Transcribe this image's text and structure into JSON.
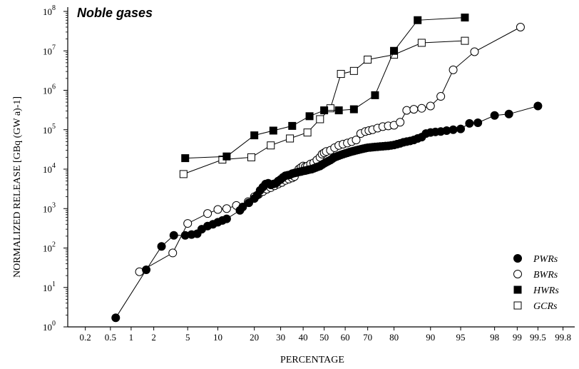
{
  "chart_data": {
    "type": "line",
    "title": "Noble gases",
    "xlabel": "PERCENTAGE",
    "ylabel": "NORMALIZED RELEASE [GBq (GW a)-1]",
    "x_scale": "normal-probability",
    "y_scale": "log",
    "xlim": [
      0.1,
      99.85
    ],
    "ylim": [
      1,
      100000000
    ],
    "x_ticks": [
      "0.2",
      "0.5",
      "1",
      "2",
      "5",
      "10",
      "20",
      "30",
      "40",
      "50",
      "60",
      "70",
      "80",
      "90",
      "95",
      "98",
      "99",
      "99.5",
      "99.8"
    ],
    "x_tick_values": [
      0.2,
      0.5,
      1,
      2,
      5,
      10,
      20,
      30,
      40,
      50,
      60,
      70,
      80,
      90,
      95,
      98,
      99,
      99.5,
      99.8
    ],
    "y_ticks": [
      {
        "base": "10",
        "exp": "0",
        "value": 1
      },
      {
        "base": "10",
        "exp": "1",
        "value": 10
      },
      {
        "base": "10",
        "exp": "2",
        "value": 100
      },
      {
        "base": "10",
        "exp": "3",
        "value": 1000
      },
      {
        "base": "10",
        "exp": "4",
        "value": 10000
      },
      {
        "base": "10",
        "exp": "5",
        "value": 100000
      },
      {
        "base": "10",
        "exp": "6",
        "value": 1000000
      },
      {
        "base": "10",
        "exp": "7",
        "value": 10000000
      },
      {
        "base": "10",
        "exp": "8",
        "value": 100000000
      }
    ],
    "legend_position": "bottom-right",
    "series": [
      {
        "name": "PWRs",
        "marker": "filled-circle",
        "points": [
          [
            0.6,
            1.7
          ],
          [
            1.6,
            28
          ],
          [
            2.5,
            110
          ],
          [
            3.5,
            210
          ],
          [
            4.7,
            210
          ],
          [
            5.5,
            220
          ],
          [
            6.3,
            230
          ],
          [
            7.0,
            300
          ],
          [
            8.0,
            360
          ],
          [
            9.0,
            400
          ],
          [
            10.0,
            450
          ],
          [
            11.0,
            500
          ],
          [
            12.0,
            550
          ],
          [
            15.5,
            900
          ],
          [
            16.3,
            1100
          ],
          [
            18.2,
            1400
          ],
          [
            20.0,
            1800
          ],
          [
            21.0,
            2200
          ],
          [
            22.0,
            2900
          ],
          [
            23.0,
            3500
          ],
          [
            24.0,
            4200
          ],
          [
            25.0,
            4400
          ],
          [
            26.0,
            4000
          ],
          [
            27.0,
            4200
          ],
          [
            28.0,
            4400
          ],
          [
            29.0,
            5000
          ],
          [
            30.0,
            5500
          ],
          [
            31.0,
            6200
          ],
          [
            32.0,
            6800
          ],
          [
            33.0,
            7000
          ],
          [
            34.0,
            7200
          ],
          [
            35.0,
            7700
          ],
          [
            36.0,
            8000
          ],
          [
            37.0,
            8200
          ],
          [
            38.0,
            8500
          ],
          [
            39.0,
            8700
          ],
          [
            40.0,
            9000
          ],
          [
            41.0,
            9200
          ],
          [
            42.0,
            9500
          ],
          [
            43.0,
            9800
          ],
          [
            44.0,
            10000
          ],
          [
            45.0,
            10500
          ],
          [
            46.0,
            11000
          ],
          [
            47.0,
            11500
          ],
          [
            48.0,
            12000
          ],
          [
            49.0,
            13000
          ],
          [
            50.0,
            14000
          ],
          [
            51.0,
            15000
          ],
          [
            52.0,
            16000
          ],
          [
            53.0,
            17000
          ],
          [
            54.0,
            18500
          ],
          [
            55.0,
            20000
          ],
          [
            56.0,
            21000
          ],
          [
            57.0,
            22000
          ],
          [
            58.0,
            23000
          ],
          [
            59.0,
            24000
          ],
          [
            60.0,
            25000
          ],
          [
            61.0,
            26000
          ],
          [
            62.0,
            27000
          ],
          [
            63.0,
            28000
          ],
          [
            64.0,
            29000
          ],
          [
            65.0,
            30000
          ],
          [
            66.0,
            31000
          ],
          [
            67.0,
            32000
          ],
          [
            68.0,
            33000
          ],
          [
            69.0,
            34000
          ],
          [
            70.0,
            35000
          ],
          [
            71.0,
            35500
          ],
          [
            72.0,
            36000
          ],
          [
            73.0,
            36500
          ],
          [
            74.0,
            37000
          ],
          [
            75.0,
            37500
          ],
          [
            76.0,
            38000
          ],
          [
            77.0,
            38500
          ],
          [
            78.0,
            39000
          ],
          [
            79.0,
            40000
          ],
          [
            80.0,
            41000
          ],
          [
            81.0,
            43000
          ],
          [
            82.0,
            45000
          ],
          [
            83.0,
            48000
          ],
          [
            84.0,
            50000
          ],
          [
            85.0,
            52000
          ],
          [
            86.0,
            55000
          ],
          [
            87.0,
            60000
          ],
          [
            88.0,
            65000
          ],
          [
            89.0,
            80000
          ],
          [
            90.0,
            85000
          ],
          [
            91.0,
            88000
          ],
          [
            92.0,
            90000
          ],
          [
            93.0,
            95000
          ],
          [
            94.0,
            100000
          ],
          [
            95.0,
            105000
          ],
          [
            96.0,
            145000
          ],
          [
            96.8,
            150000
          ],
          [
            98.0,
            230000
          ],
          [
            98.7,
            250000
          ],
          [
            99.5,
            400000
          ]
        ]
      },
      {
        "name": "BWRs",
        "marker": "open-circle",
        "points": [
          [
            1.3,
            25
          ],
          [
            3.4,
            75
          ],
          [
            5.0,
            420
          ],
          [
            8.0,
            750
          ],
          [
            10.0,
            950
          ],
          [
            12.0,
            1000
          ],
          [
            14.5,
            1200
          ],
          [
            18.0,
            1500
          ],
          [
            20.0,
            2000
          ],
          [
            21.5,
            2300
          ],
          [
            23.0,
            2700
          ],
          [
            24.5,
            3100
          ],
          [
            26.0,
            3400
          ],
          [
            27.5,
            3800
          ],
          [
            29.0,
            4200
          ],
          [
            30.5,
            4600
          ],
          [
            32.0,
            5200
          ],
          [
            33.5,
            5600
          ],
          [
            35.0,
            6000
          ],
          [
            36.0,
            6500
          ],
          [
            38.0,
            10000
          ],
          [
            39.0,
            11000
          ],
          [
            40.0,
            12000
          ],
          [
            41.0,
            11500
          ],
          [
            42.0,
            12000
          ],
          [
            43.5,
            13500
          ],
          [
            45.0,
            14500
          ],
          [
            46.5,
            17000
          ],
          [
            48.0,
            20000
          ],
          [
            49.0,
            24000
          ],
          [
            50.0,
            26000
          ],
          [
            51.0,
            28000
          ],
          [
            53.0,
            30000
          ],
          [
            55.0,
            35000
          ],
          [
            57.0,
            40000
          ],
          [
            59.0,
            43000
          ],
          [
            61.0,
            46000
          ],
          [
            63.0,
            50000
          ],
          [
            65.0,
            55000
          ],
          [
            67.0,
            80000
          ],
          [
            69.0,
            90000
          ],
          [
            70.5,
            95000
          ],
          [
            72.0,
            100000
          ],
          [
            74.0,
            110000
          ],
          [
            76.0,
            120000
          ],
          [
            78.0,
            125000
          ],
          [
            80.0,
            130000
          ],
          [
            82.0,
            155000
          ],
          [
            84.0,
            310000
          ],
          [
            86.0,
            330000
          ],
          [
            88.0,
            350000
          ],
          [
            90.0,
            400000
          ],
          [
            92.0,
            700000
          ],
          [
            94.0,
            3300000
          ],
          [
            96.5,
            9500000
          ],
          [
            99.1,
            40000000
          ]
        ]
      },
      {
        "name": "HWRs",
        "marker": "filled-square",
        "points": [
          [
            4.7,
            19000
          ],
          [
            12.0,
            21000
          ],
          [
            20.0,
            72000
          ],
          [
            27.0,
            95000
          ],
          [
            35.0,
            125000
          ],
          [
            43.0,
            220000
          ],
          [
            50.0,
            310000
          ],
          [
            57.0,
            310000
          ],
          [
            64.0,
            330000
          ],
          [
            73.0,
            750000
          ],
          [
            80.0,
            10000000
          ],
          [
            87.0,
            60000000
          ],
          [
            95.5,
            70000000
          ]
        ]
      },
      {
        "name": "GCRs",
        "marker": "open-square",
        "points": [
          [
            4.5,
            7500
          ],
          [
            11.0,
            17500
          ],
          [
            19.0,
            20000
          ],
          [
            26.0,
            40000
          ],
          [
            34.0,
            60000
          ],
          [
            42.0,
            85000
          ],
          [
            48.0,
            185000
          ],
          [
            53.0,
            350000
          ],
          [
            58.0,
            2600000
          ],
          [
            64.0,
            3100000
          ],
          [
            70.0,
            6000000
          ],
          [
            80.0,
            8000000
          ],
          [
            88.0,
            16000000
          ],
          [
            95.5,
            18000000
          ]
        ]
      }
    ]
  }
}
